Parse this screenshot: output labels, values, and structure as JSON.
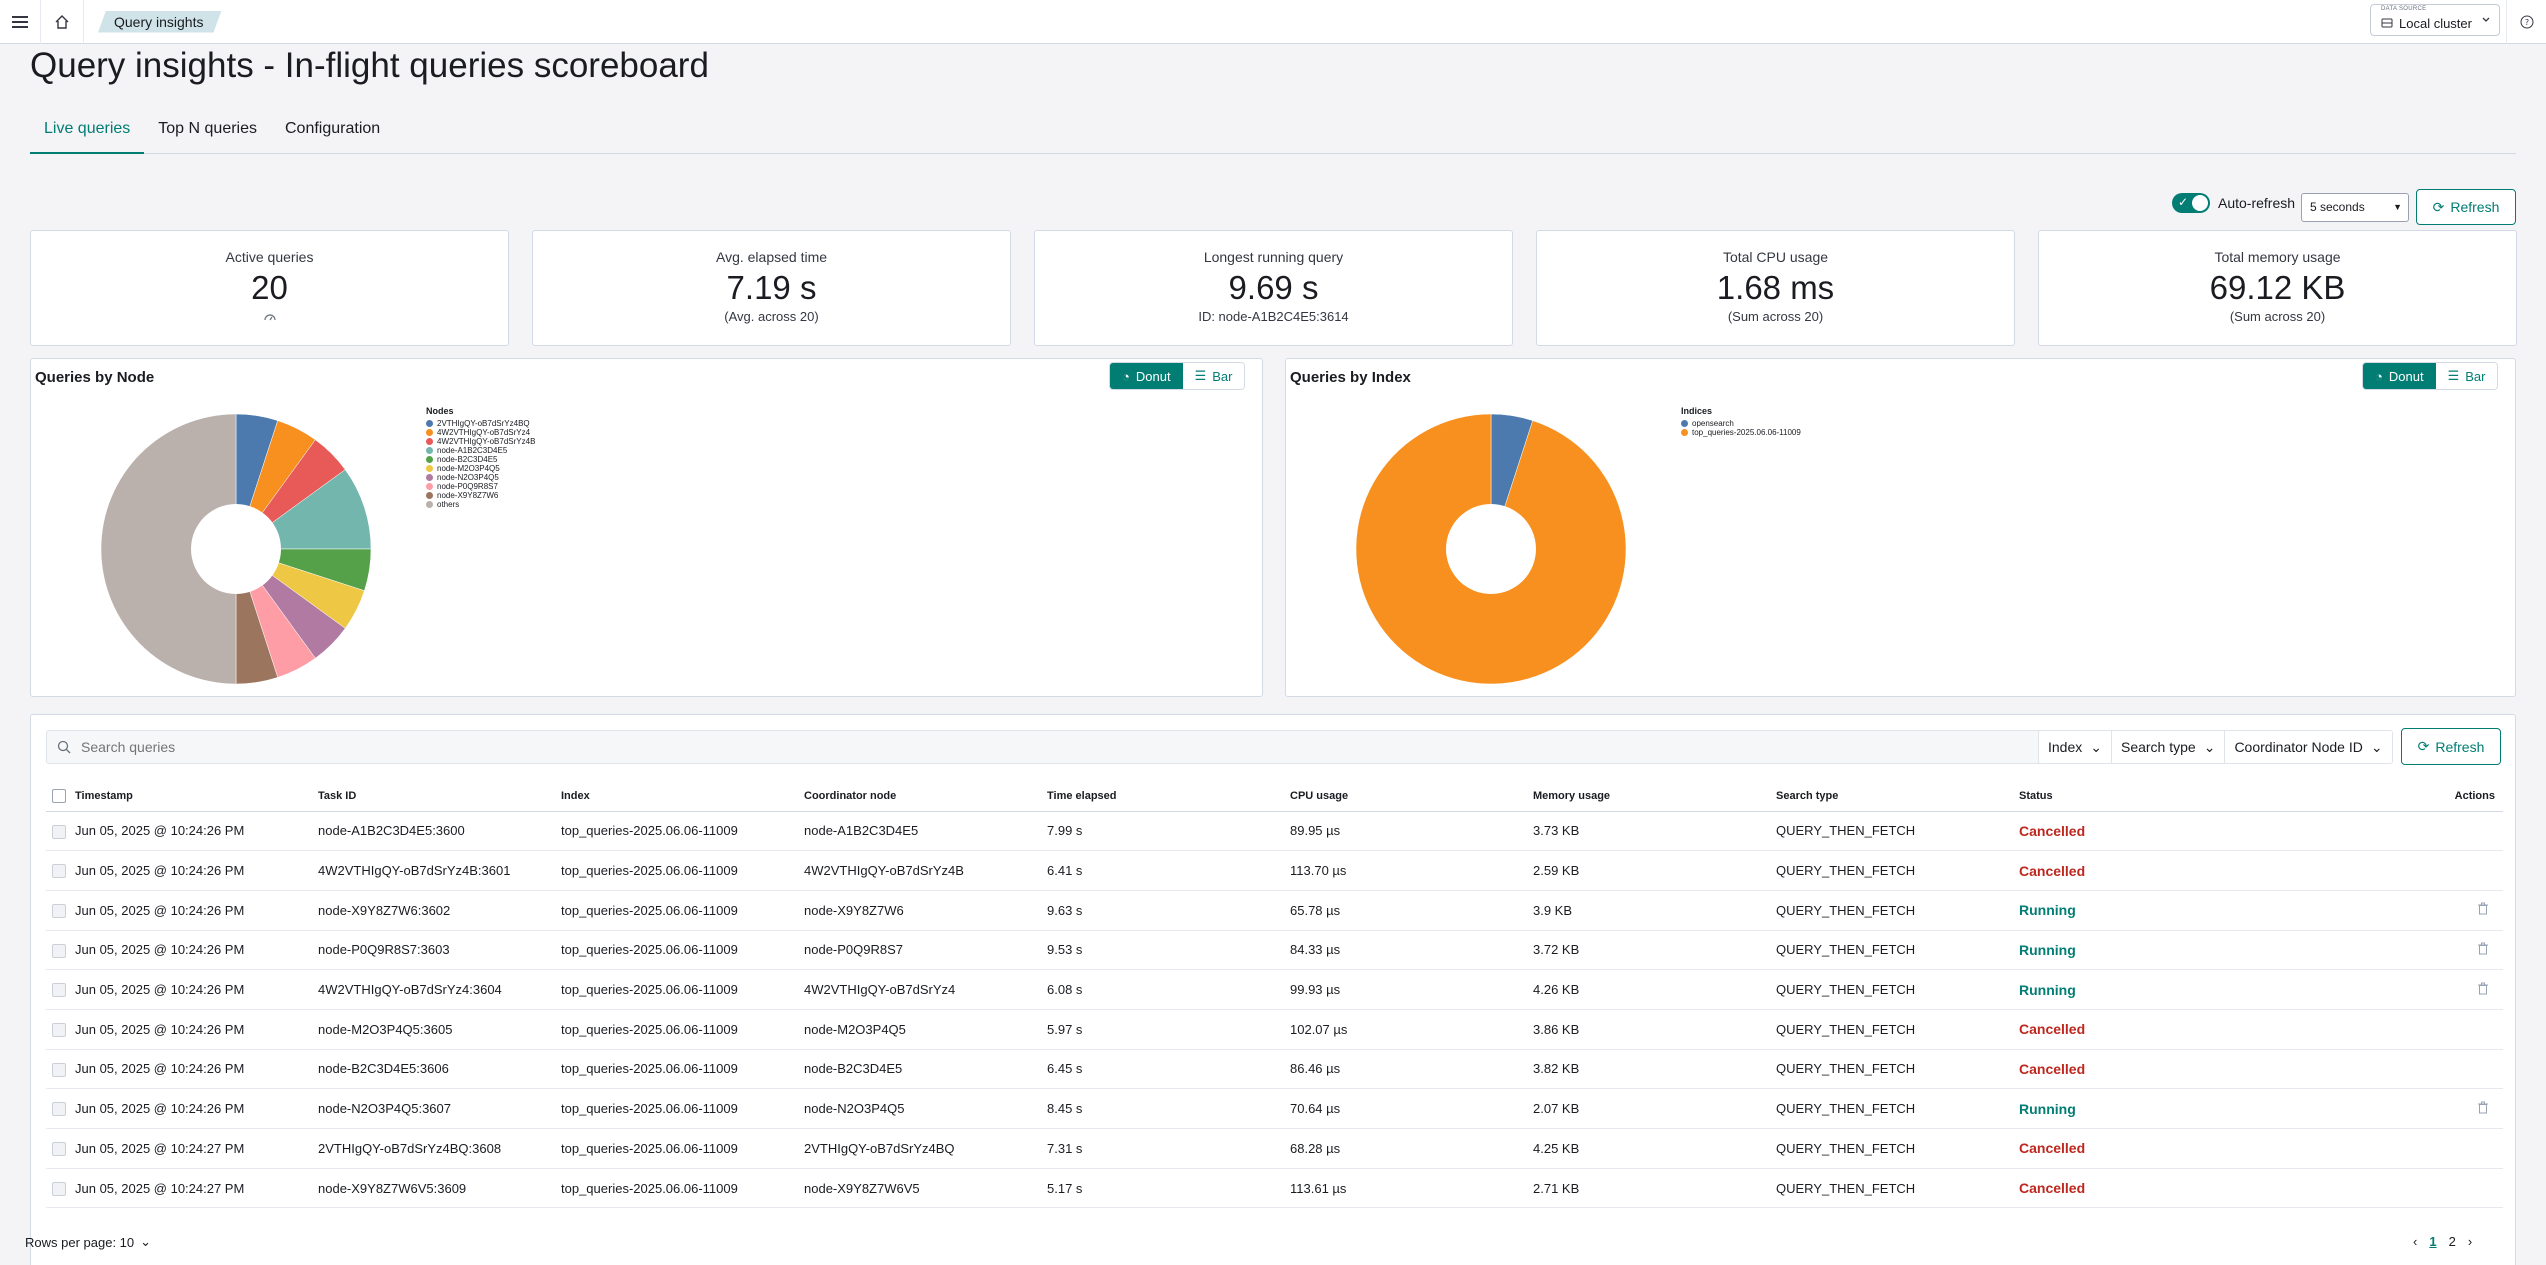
{
  "breadcrumb": "Query insights",
  "data_source": {
    "label": "DATA SOURCE",
    "value": "Local cluster"
  },
  "page_title": "Query insights - In-flight queries scoreboard",
  "tabs": [
    {
      "label": "Live queries",
      "active": true
    },
    {
      "label": "Top N queries",
      "active": false
    },
    {
      "label": "Configuration",
      "active": false
    }
  ],
  "auto_refresh": {
    "label": "Auto-refresh",
    "enabled": true,
    "interval": "5 seconds",
    "button": "Refresh"
  },
  "stats": [
    {
      "label": "Active queries",
      "value": "20",
      "sub": ""
    },
    {
      "label": "Avg. elapsed time",
      "value": "7.19 s",
      "sub": "(Avg. across 20)"
    },
    {
      "label": "Longest running query",
      "value": "9.69 s",
      "sub": "ID: node-A1B2C4E5:3614"
    },
    {
      "label": "Total CPU usage",
      "value": "1.68 ms",
      "sub": "(Sum across 20)"
    },
    {
      "label": "Total memory usage",
      "value": "69.12 KB",
      "sub": "(Sum across 20)"
    }
  ],
  "charts": {
    "donut_label": "Donut",
    "bar_label": "Bar",
    "by_node": {
      "title": "Queries by Node",
      "legend_title": "Nodes"
    },
    "by_index": {
      "title": "Queries by Index",
      "legend_title": "Indices"
    }
  },
  "chart_data": [
    {
      "type": "pie",
      "title": "Queries by Node",
      "categories": [
        "2VTHIgQY-oB7dSrYz4BQ",
        "4W2VTHIgQY-oB7dSrYz4",
        "4W2VTHIgQY-oB7dSrYz4B",
        "node-A1B2C3D4E5",
        "node-B2C3D4E5",
        "node-M2O3P4Q5",
        "node-N2O3P4Q5",
        "node-P0Q9R8S7",
        "node-X9Y8Z7W6",
        "others"
      ],
      "values": [
        1,
        1,
        1,
        2,
        1,
        1,
        1,
        1,
        1,
        10
      ],
      "colors": [
        "#54B399",
        "#6092C0",
        "#D36086",
        "#9170B8",
        "#CA8EAE",
        "#D6BF57",
        "#B9A888",
        "#DA8B45",
        "#AA6556",
        "#E7664C"
      ],
      "slice_colors": [
        "#4c7aae",
        "#f7901e",
        "#e85a58",
        "#72b6ad",
        "#55a14a",
        "#eec845",
        "#b07aa2",
        "#ff9da7",
        "#9c755f",
        "#bab0ac"
      ],
      "legend": "right"
    },
    {
      "type": "pie",
      "title": "Queries by Index",
      "categories": [
        "opensearch",
        "top_queries-2025.06.06-11009"
      ],
      "values": [
        1,
        19
      ],
      "slice_colors": [
        "#4c7aae",
        "#f7901e"
      ],
      "legend": "right"
    }
  ],
  "table": {
    "search_placeholder": "Search queries",
    "filters": [
      "Index",
      "Search type",
      "Coordinator Node ID"
    ],
    "refresh": "Refresh",
    "columns": [
      "Timestamp",
      "Task ID",
      "Index",
      "Coordinator node",
      "Time elapsed",
      "CPU usage",
      "Memory usage",
      "Search type",
      "Status",
      "Actions"
    ],
    "rows": [
      {
        "ts": "Jun 05, 2025 @ 10:24:26 PM",
        "task": "node-A1B2C3D4E5:3600",
        "index": "top_queries-2025.06.06-11009",
        "coord": "node-A1B2C3D4E5",
        "time": "7.99 s",
        "cpu": "89.95 µs",
        "mem": "3.73 KB",
        "type": "QUERY_THEN_FETCH",
        "status": "Cancelled"
      },
      {
        "ts": "Jun 05, 2025 @ 10:24:26 PM",
        "task": "4W2VTHIgQY-oB7dSrYz4B:3601",
        "index": "top_queries-2025.06.06-11009",
        "coord": "4W2VTHIgQY-oB7dSrYz4B",
        "time": "6.41 s",
        "cpu": "113.70 µs",
        "mem": "2.59 KB",
        "type": "QUERY_THEN_FETCH",
        "status": "Cancelled"
      },
      {
        "ts": "Jun 05, 2025 @ 10:24:26 PM",
        "task": "node-X9Y8Z7W6:3602",
        "index": "top_queries-2025.06.06-11009",
        "coord": "node-X9Y8Z7W6",
        "time": "9.63 s",
        "cpu": "65.78 µs",
        "mem": "3.9 KB",
        "type": "QUERY_THEN_FETCH",
        "status": "Running"
      },
      {
        "ts": "Jun 05, 2025 @ 10:24:26 PM",
        "task": "node-P0Q9R8S7:3603",
        "index": "top_queries-2025.06.06-11009",
        "coord": "node-P0Q9R8S7",
        "time": "9.53 s",
        "cpu": "84.33 µs",
        "mem": "3.72 KB",
        "type": "QUERY_THEN_FETCH",
        "status": "Running"
      },
      {
        "ts": "Jun 05, 2025 @ 10:24:26 PM",
        "task": "4W2VTHIgQY-oB7dSrYz4:3604",
        "index": "top_queries-2025.06.06-11009",
        "coord": "4W2VTHIgQY-oB7dSrYz4",
        "time": "6.08 s",
        "cpu": "99.93 µs",
        "mem": "4.26 KB",
        "type": "QUERY_THEN_FETCH",
        "status": "Running"
      },
      {
        "ts": "Jun 05, 2025 @ 10:24:26 PM",
        "task": "node-M2O3P4Q5:3605",
        "index": "top_queries-2025.06.06-11009",
        "coord": "node-M2O3P4Q5",
        "time": "5.97 s",
        "cpu": "102.07 µs",
        "mem": "3.86 KB",
        "type": "QUERY_THEN_FETCH",
        "status": "Cancelled"
      },
      {
        "ts": "Jun 05, 2025 @ 10:24:26 PM",
        "task": "node-B2C3D4E5:3606",
        "index": "top_queries-2025.06.06-11009",
        "coord": "node-B2C3D4E5",
        "time": "6.45 s",
        "cpu": "86.46 µs",
        "mem": "3.82 KB",
        "type": "QUERY_THEN_FETCH",
        "status": "Cancelled"
      },
      {
        "ts": "Jun 05, 2025 @ 10:24:26 PM",
        "task": "node-N2O3P4Q5:3607",
        "index": "top_queries-2025.06.06-11009",
        "coord": "node-N2O3P4Q5",
        "time": "8.45 s",
        "cpu": "70.64 µs",
        "mem": "2.07 KB",
        "type": "QUERY_THEN_FETCH",
        "status": "Running"
      },
      {
        "ts": "Jun 05, 2025 @ 10:24:27 PM",
        "task": "2VTHIgQY-oB7dSrYz4BQ:3608",
        "index": "top_queries-2025.06.06-11009",
        "coord": "2VTHIgQY-oB7dSrYz4BQ",
        "time": "7.31 s",
        "cpu": "68.28 µs",
        "mem": "4.25 KB",
        "type": "QUERY_THEN_FETCH",
        "status": "Cancelled"
      },
      {
        "ts": "Jun 05, 2025 @ 10:24:27 PM",
        "task": "node-X9Y8Z7W6V5:3609",
        "index": "top_queries-2025.06.06-11009",
        "coord": "node-X9Y8Z7W6V5",
        "time": "5.17 s",
        "cpu": "113.61 µs",
        "mem": "2.71 KB",
        "type": "QUERY_THEN_FETCH",
        "status": "Cancelled"
      }
    ],
    "rows_per_page": "Rows per page: 10",
    "pages": [
      "1",
      "2"
    ],
    "current_page": "1"
  }
}
